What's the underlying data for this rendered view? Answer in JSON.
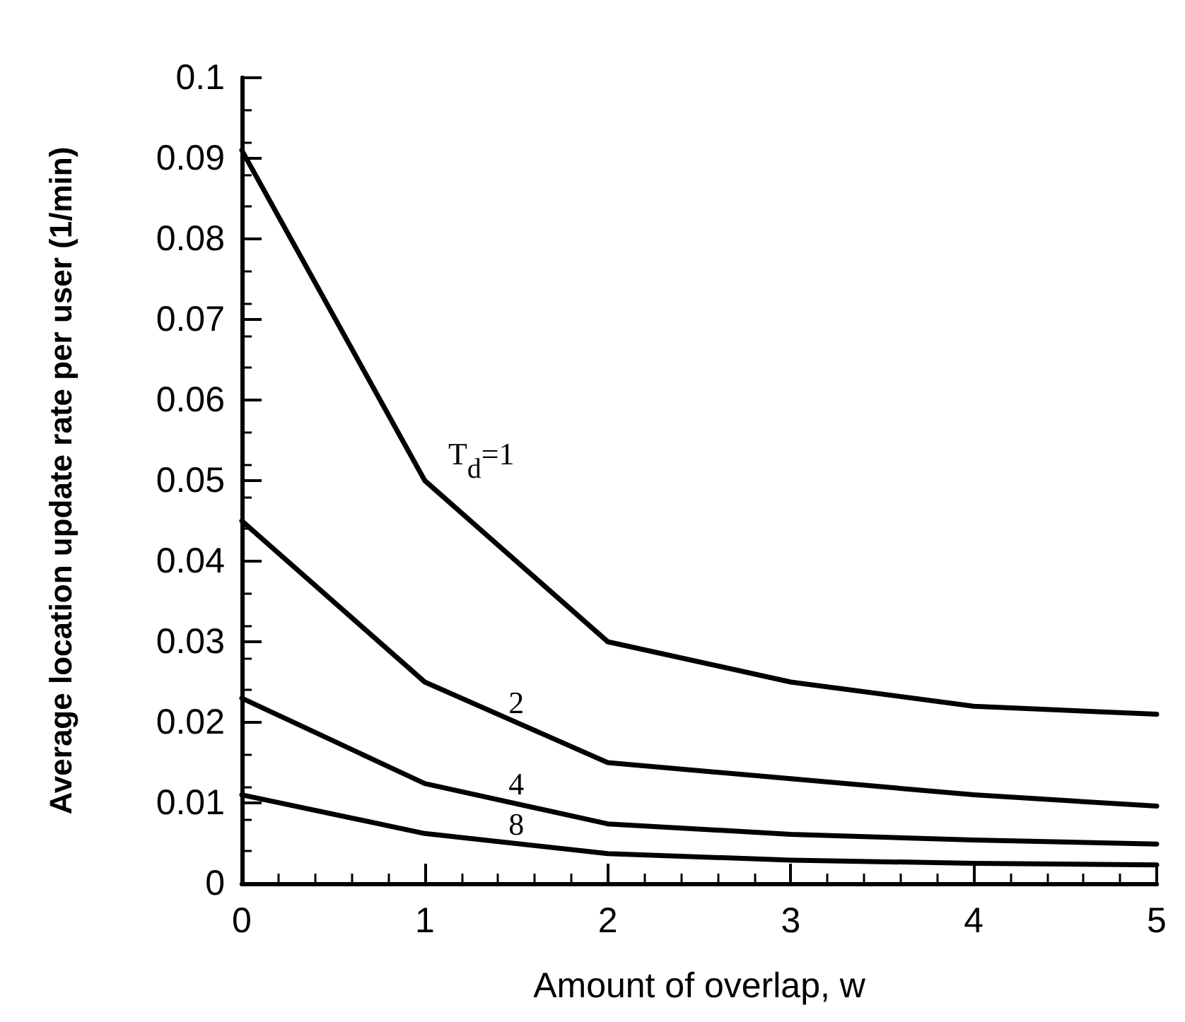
{
  "chart_data": {
    "type": "line",
    "xlabel": "Amount of overlap, w",
    "ylabel": "Average location update rate per user (1/min)",
    "x": [
      0,
      1,
      2,
      3,
      4,
      5
    ],
    "series": [
      {
        "name": "T$_{d}$=1",
        "color": "#000000",
        "values": [
          0.091,
          0.05,
          0.03,
          0.025,
          0.022,
          0.021
        ]
      },
      {
        "name": "2",
        "color": "#000000",
        "values": [
          0.045,
          0.025,
          0.015,
          0.013,
          0.011,
          0.0096
        ]
      },
      {
        "name": "4",
        "color": "#000000",
        "values": [
          0.023,
          0.0124,
          0.0074,
          0.0061,
          0.0054,
          0.0049
        ]
      },
      {
        "name": "8",
        "color": "#000000",
        "values": [
          0.011,
          0.0062,
          0.0037,
          0.0029,
          0.0025,
          0.0023
        ]
      }
    ],
    "xlim": [
      0,
      5
    ],
    "xticks": [
      0,
      1,
      2,
      3,
      4,
      5
    ],
    "ylim": [
      0,
      0.1
    ],
    "yticks": [
      0,
      0.01,
      0.02,
      0.03,
      0.04,
      0.05,
      0.06,
      0.07,
      0.08,
      0.09,
      0.1
    ],
    "grid": false,
    "legend": false,
    "marker": "none",
    "line_style": "solid"
  }
}
